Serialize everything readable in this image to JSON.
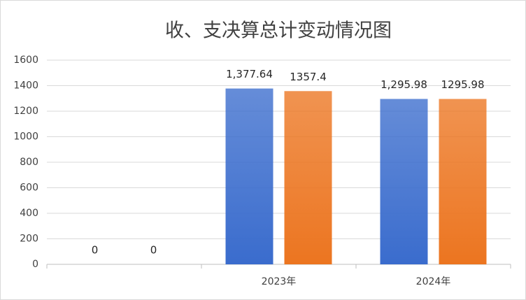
{
  "chart_data": {
    "type": "bar",
    "title": "收、支决算总计变动情况图",
    "categories": [
      null,
      "2023年",
      "2024年"
    ],
    "series": [
      {
        "color": "#3a6ccd",
        "values": [
          0,
          1377.64,
          1295.98
        ],
        "value_labels": [
          "0",
          "1,377.64",
          "1,295.98"
        ]
      },
      {
        "color": "#ec7520",
        "values": [
          0,
          1357.4,
          1295.98
        ]
      }
    ],
    "ylim": [
      0,
      1600
    ],
    "yticks": [
      0,
      200,
      400,
      600,
      800,
      1000,
      1200,
      1400,
      1600
    ],
    "grid": true
  }
}
